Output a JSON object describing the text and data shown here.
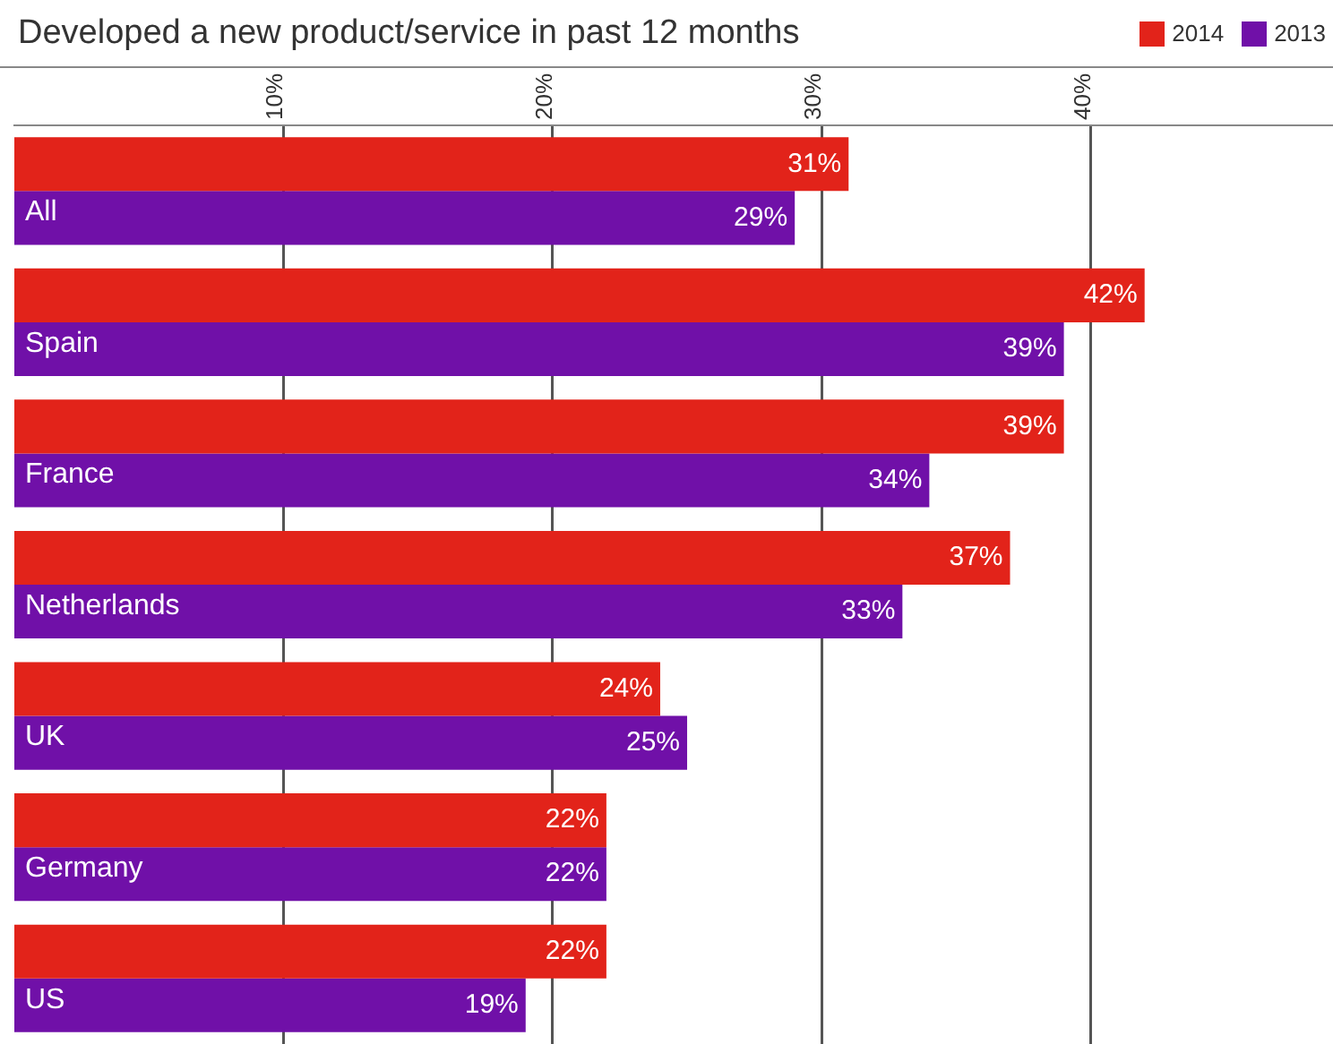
{
  "chart_data": {
    "type": "bar",
    "orientation": "horizontal",
    "title": "Developed a new product/service in past 12 months",
    "categories": [
      "All",
      "Spain",
      "France",
      "Netherlands",
      "UK",
      "Germany",
      "US"
    ],
    "series": [
      {
        "name": "2014",
        "color": "#e2231a",
        "values": [
          31,
          42,
          39,
          37,
          24,
          22,
          22
        ],
        "value_labels": [
          "31%",
          "42%",
          "39%",
          "37%",
          "24%",
          "22%",
          "22%"
        ]
      },
      {
        "name": "2013",
        "color": "#7010a8",
        "values": [
          29,
          39,
          34,
          33,
          25,
          22,
          19
        ],
        "value_labels": [
          "29%",
          "39%",
          "34%",
          "33%",
          "25%",
          "22%",
          "19%"
        ]
      }
    ],
    "xlim": [
      0,
      49
    ],
    "xticks": [
      {
        "value": 10,
        "label": "10%"
      },
      {
        "value": 20,
        "label": "20%"
      },
      {
        "value": 30,
        "label": "30%"
      },
      {
        "value": 40,
        "label": "40%"
      }
    ],
    "grid": "x",
    "legend": "top right"
  }
}
